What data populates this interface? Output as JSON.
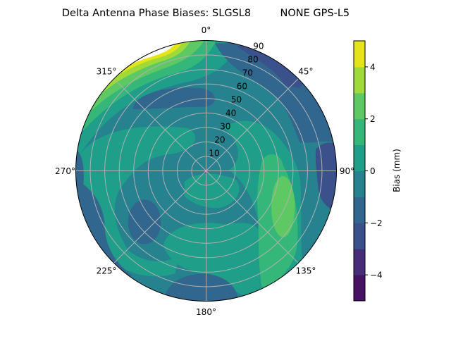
{
  "chart_data": {
    "type": "heatmap",
    "projection": "polar",
    "style": "filled-contour",
    "title": "Delta Antenna Phase Biases: SLGSL8         NONE GPS-L5",
    "theta_direction": "clockwise",
    "theta_zero": "north",
    "theta_ticks": [
      "0°",
      "45°",
      "90°",
      "135°",
      "180°",
      "225°",
      "270°",
      "315°"
    ],
    "theta_tick_values": [
      0,
      45,
      90,
      135,
      180,
      225,
      270,
      315
    ],
    "r_ticks": [
      "10",
      "20",
      "30",
      "40",
      "50",
      "60",
      "70",
      "80",
      "90"
    ],
    "r_tick_values": [
      10,
      20,
      30,
      40,
      50,
      60,
      70,
      80,
      90
    ],
    "rlim": [
      0,
      90
    ],
    "grid": true,
    "colorbar": {
      "label": "Bias (mm)",
      "levels": [
        -5,
        -4,
        -3,
        -2,
        -1,
        0,
        1,
        2,
        3,
        4,
        5
      ],
      "ticks": [
        "4",
        "2",
        "0",
        "−2",
        "−4"
      ],
      "tick_values": [
        4,
        2,
        0,
        -2,
        -4
      ],
      "colors": [
        "#471164",
        "#472c7a",
        "#3b518b",
        "#31678e",
        "#26828e",
        "#1f9e89",
        "#35b779",
        "#5ec962",
        "#a0da39",
        "#e5e419"
      ],
      "colormap": "viridis",
      "placement": "right"
    }
  }
}
